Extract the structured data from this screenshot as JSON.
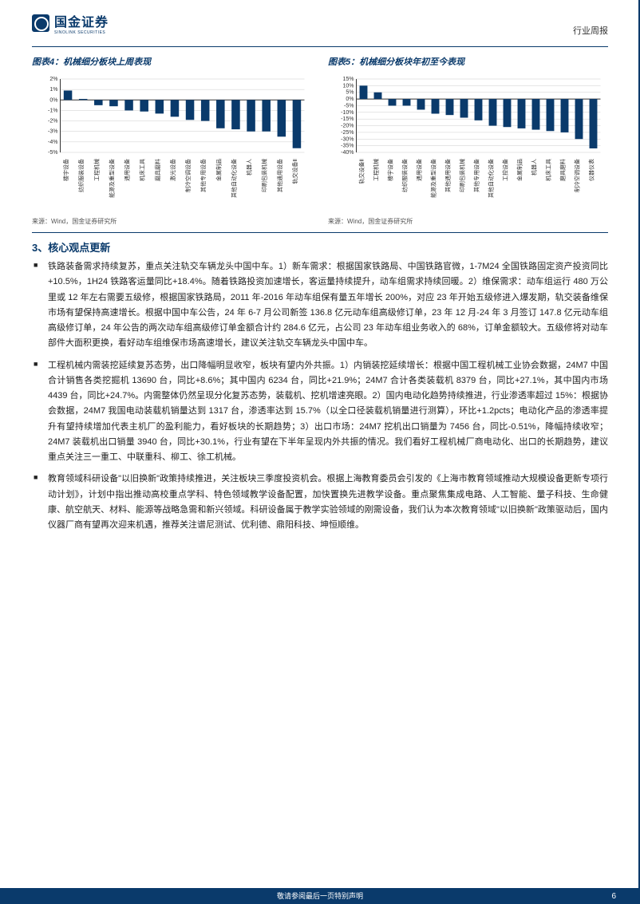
{
  "logo": {
    "name": "国金证券",
    "sub": "SINOLINK SECURITIES"
  },
  "doc_type": "行业周报",
  "source": "来源：Wind，国金证券研究所",
  "section": "3、核心观点更新",
  "footer": "敬请参阅最后一页特别声明",
  "page_num": "6",
  "chart4": {
    "title": "图表4：机械细分板块上周表现",
    "type": "bar",
    "bar_color": "#0a3a6b",
    "grid_color": "#cccccc",
    "axis_color": "#333333",
    "text_color": "#333333",
    "label_fontsize": 7,
    "tick_fontsize": 7,
    "ylim": [
      -5,
      2
    ],
    "ytick_step": 1,
    "ytick_format": "%",
    "categories": [
      "楼宇设备",
      "纺织服装设备",
      "工程机械",
      "能源及重型设备",
      "通用设备",
      "机床工具",
      "磨具磨料",
      "激光设备",
      "制冷空调设备",
      "其他专用设备",
      "金属制品",
      "其他自动化设备",
      "机器人",
      "印刷包装机械",
      "其他通用设备",
      "轨交设备Ⅱ"
    ],
    "values": [
      0.9,
      0.1,
      -0.5,
      -0.6,
      -1.0,
      -1.1,
      -1.3,
      -1.6,
      -1.9,
      -2.0,
      -2.7,
      -2.8,
      -3.0,
      -3.0,
      -3.5,
      -4.6
    ]
  },
  "chart5": {
    "title": "图表5：机械细分板块年初至今表现",
    "type": "bar",
    "bar_color": "#0a3a6b",
    "grid_color": "#cccccc",
    "axis_color": "#333333",
    "text_color": "#333333",
    "label_fontsize": 7,
    "tick_fontsize": 7,
    "ylim": [
      -40,
      15
    ],
    "ytick_step": 5,
    "ytick_format": "%",
    "categories": [
      "轨交设备Ⅱ",
      "工程机械",
      "楼宇设备",
      "纺织服装设备",
      "通用设备",
      "能源及重型设备",
      "其他通用设备",
      "印刷包装机械",
      "其他专用设备",
      "其他自动化设备",
      "工控设备",
      "金属制品",
      "机器人",
      "机床工具",
      "磨具磨料",
      "制冷空调设备",
      "仪器仪表"
    ],
    "values": [
      10,
      5,
      -5,
      -5,
      -8,
      -11,
      -12,
      -14,
      -16,
      -20,
      -21,
      -22,
      -23,
      -24,
      -25,
      -30,
      -37
    ]
  },
  "bullets": [
    "铁路装备需求持续复苏，重点关注轨交车辆龙头中国中车。1）新车需求：根据国家铁路局、中国铁路官微，1-7M24 全国铁路固定资产投资同比+10.5%，1H24 铁路客运量同比+18.4%。随着铁路投资加速增长，客运量持续提升，动车组需求持续回暖。2）维保需求：动车组运行 480 万公里或 12 年左右需要五级修，根据国家铁路局，2011 年-2016 年动车组保有量五年增长 200%，对应 23 年开始五级修进入爆发期，轨交装备维保市场有望保持高速增长。根据中国中车公告，24 年 6-7 月公司新签 136.8 亿元动车组高级修订单，23 年 12 月-24 年 3 月签订 147.8 亿元动车组高级修订单，24 年公告的两次动车组高级修订单金额合计约 284.6 亿元，占公司 23 年动车组业务收入的 68%，订单金额较大。五级修将对动车部件大面积更换，看好动车组维保市场高速增长，建议关注轨交车辆龙头中国中车。",
    "工程机械内需装挖延续复苏态势，出口降幅明显收窄，板块有望内外共振。1）内销装挖延续增长：根据中国工程机械工业协会数据，24M7 中国合计销售各类挖掘机 13690 台，同比+8.6%；其中国内 6234 台，同比+21.9%；24M7 合计各类装载机 8379 台，同比+27.1%，其中国内市场 4439 台，同比+24.7%。内需整体仍然呈现分化复苏态势，装载机、挖机增速亮眼。2）国内电动化趋势持续推进，行业渗透率超过 15%：根据协会数据，24M7 我国电动装载机销量达到 1317 台，渗透率达到 15.7%（以全口径装载机销量进行测算），环比+1.2pcts；电动化产品的渗透率提升有望持续增加代表主机厂的盈利能力，看好板块的长期趋势；3）出口市场：24M7 挖机出口销量为 7456 台，同比-0.51%，降幅持续收窄；24M7 装载机出口销量 3940 台，同比+30.1%，行业有望在下半年呈现内外共振的情况。我们看好工程机械厂商电动化、出口的长期趋势，建议重点关注三一重工、中联重科、柳工、徐工机械。",
    "教育领域科研设备\"以旧换新\"政策持续推进，关注板块三季度投资机会。根据上海教育委员会引发的《上海市教育领域推动大规模设备更新专项行动计划》，计划中指出推动高校重点学科、特色领域教学设备配置，加快置换先进教学设备。重点聚焦集成电路、人工智能、量子科技、生命健康、航空航天、材料、能源等战略急需和新兴领域。科研设备属于教学实验领域的刚需设备，我们认为本次教育领域\"以旧换新\"政策驱动后，国内仪器厂商有望再次迎来机遇，推荐关注谱尼测试、优利德、鼎阳科技、坤恒顺维。"
  ]
}
